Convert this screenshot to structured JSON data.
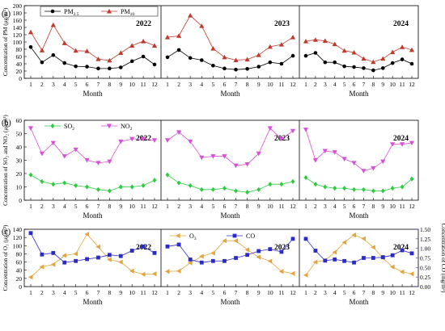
{
  "figure": {
    "colors": {
      "pm25": "#000000",
      "pm10": "#c0392b",
      "so2": "#2ecc40",
      "no2": "#d94fd9",
      "o3": "#e5a43a",
      "co": "#2b2bcc",
      "frame": "#000000",
      "co_axis": "#2b2bcc"
    }
  },
  "chart_data": [
    {
      "type": "line",
      "panel_label": "(a)",
      "xlabel": "Month",
      "ylabel": "Concentration of PM (μg/m³)",
      "ylim": [
        0,
        200
      ],
      "yticks": [
        0,
        20,
        40,
        60,
        80,
        100,
        120,
        140,
        160,
        180,
        200
      ],
      "categories": [
        "1",
        "2",
        "3",
        "4",
        "5",
        "6",
        "7",
        "8",
        "9",
        "10",
        "11",
        "12"
      ],
      "years": [
        "2022",
        "2023",
        "2024"
      ],
      "legend": {
        "placement": "top-left",
        "entries": [
          "PM2.5",
          "PM10"
        ]
      },
      "series": [
        {
          "name": "PM2.5",
          "marker": "circle",
          "color": "#000000",
          "values": {
            "2022": [
              86,
              44,
              64,
              42,
              33,
              32,
              27,
              27,
              30,
              47,
              60,
              38
            ],
            "2023": [
              58,
              78,
              56,
              50,
              35,
              27,
              24,
              26,
              32,
              44,
              40,
              62
            ],
            "2024": [
              62,
              70,
              44,
              44,
              33,
              31,
              28,
              22,
              28,
              42,
              52,
              40
            ]
          }
        },
        {
          "name": "PM10",
          "marker": "triangle",
          "color": "#c0392b",
          "values": {
            "2022": [
              127,
              77,
              147,
              97,
              76,
              75,
              53,
              49,
              70,
              90,
              102,
              90
            ],
            "2023": [
              113,
              117,
              173,
              144,
              82,
              58,
              50,
              52,
              64,
              87,
              93,
              113
            ],
            "2024": [
              102,
              106,
              103,
              94,
              76,
              71,
              54,
              45,
              54,
              72,
              86,
              78
            ]
          }
        }
      ]
    },
    {
      "type": "line",
      "panel_label": "(b)",
      "xlabel": "Month",
      "ylabel": "Concentration of SO₂ and NO₂ (μg/m³)",
      "ylim": [
        0,
        60
      ],
      "yticks": [
        0,
        10,
        20,
        30,
        40,
        50,
        60
      ],
      "categories": [
        "1",
        "2",
        "3",
        "4",
        "5",
        "6",
        "7",
        "8",
        "9",
        "10",
        "11",
        "12"
      ],
      "years": [
        "2022",
        "2023",
        "2024"
      ],
      "legend": {
        "placement": "top-left",
        "entries": [
          "SO2",
          "NO2"
        ]
      },
      "series": [
        {
          "name": "SO2",
          "marker": "diamond",
          "color": "#2ecc40",
          "values": {
            "2022": [
              19,
              14,
              12,
              13,
              11,
              10,
              8,
              7,
              10,
              10,
              11,
              15
            ],
            "2023": [
              19,
              13,
              11,
              8,
              8,
              9,
              7,
              6,
              8,
              12,
              12,
              14
            ],
            "2024": [
              17,
              12,
              10,
              9,
              9,
              8,
              8,
              7,
              7,
              9,
              10,
              16
            ]
          }
        },
        {
          "name": "NO2",
          "marker": "triangle-down",
          "color": "#d94fd9",
          "values": {
            "2022": [
              54,
              35,
              43,
              33,
              38,
              30,
              28,
              29,
              44,
              46,
              46,
              45
            ],
            "2023": [
              45,
              51,
              44,
              32,
              33,
              33,
              26,
              27,
              35,
              54,
              46,
              52
            ],
            "2024": [
              53,
              30,
              37,
              36,
              31,
              28,
              22,
              24,
              29,
              42,
              42,
              43
            ]
          }
        }
      ]
    },
    {
      "type": "line",
      "panel_label": "(c)",
      "xlabel": "Month",
      "ylabel": "Concentration of O₃ (μg/m³)",
      "ylabel_right": "Concentration of CO (mg/m³)",
      "ylim": [
        0,
        140
      ],
      "yticks": [
        0,
        20,
        40,
        60,
        80,
        100,
        120,
        140
      ],
      "ylim_right": [
        0,
        1.5
      ],
      "yticks_right": [
        "0.00",
        "0.25",
        "0.50",
        "0.75",
        "1.00",
        "1.25",
        "1.50"
      ],
      "categories": [
        "1",
        "2",
        "3",
        "4",
        "5",
        "6",
        "7",
        "8",
        "9",
        "10",
        "11",
        "12"
      ],
      "years": [
        "2022",
        "2023",
        "2024"
      ],
      "legend": {
        "placement": "top-left (2023 panel)",
        "entries": [
          "O3",
          "CO"
        ]
      },
      "series": [
        {
          "name": "O3",
          "axis": "left",
          "marker": "triangle-left",
          "color": "#e5a43a",
          "values": {
            "2022": [
              23,
              48,
              54,
              76,
              80,
              128,
              97,
              66,
              60,
              38,
              30,
              31
            ],
            "2023": [
              37,
              38,
              58,
              74,
              82,
              112,
              112,
              90,
              72,
              62,
              37,
              32
            ],
            "2024": [
              28,
              60,
              64,
              84,
              108,
              126,
              117,
              96,
              70,
              48,
              36,
              31
            ]
          }
        },
        {
          "name": "CO",
          "axis": "right",
          "marker": "square",
          "color": "#2b2bcc",
          "values": {
            "2022": [
              1.4,
              0.84,
              0.88,
              0.63,
              0.67,
              0.72,
              0.76,
              0.83,
              0.8,
              0.94,
              1.05,
              0.88
            ],
            "2023": [
              1.05,
              1.1,
              0.71,
              0.63,
              0.67,
              0.67,
              0.75,
              0.83,
              0.93,
              0.98,
              0.91,
              1.25
            ],
            "2024": [
              1.25,
              0.94,
              0.68,
              0.71,
              0.67,
              0.63,
              0.75,
              0.75,
              0.77,
              0.82,
              0.95,
              0.87
            ]
          }
        }
      ]
    }
  ]
}
